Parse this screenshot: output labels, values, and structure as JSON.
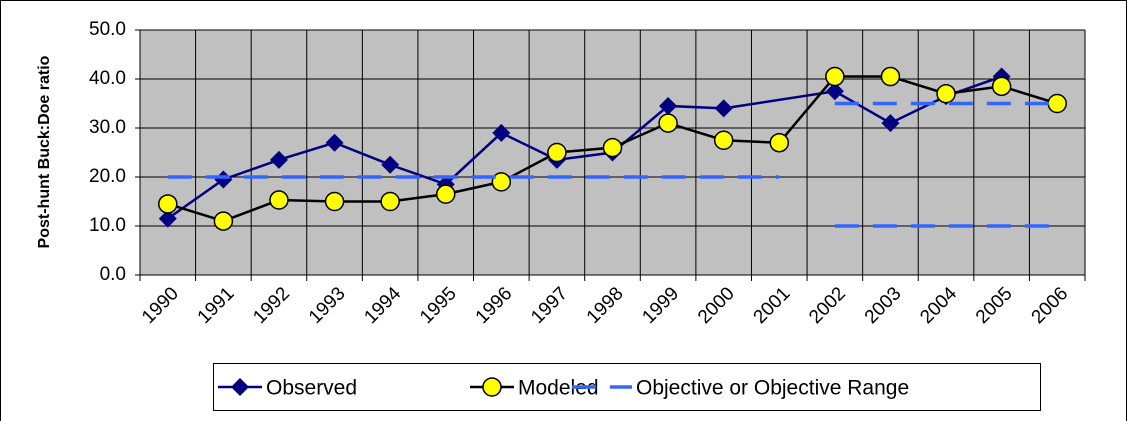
{
  "chart_data": {
    "type": "line",
    "y_label": "Post-hunt Buck:Doe ratio",
    "categories": [
      "1990",
      "1991",
      "1992",
      "1993",
      "1994",
      "1995",
      "1996",
      "1997",
      "1998",
      "1999",
      "2000",
      "2001",
      "2002",
      "2003",
      "2004",
      "2005",
      "2006"
    ],
    "ylim": [
      0,
      50
    ],
    "yticks": [
      {
        "value": 0,
        "label": "0.0"
      },
      {
        "value": 10,
        "label": "10.0"
      },
      {
        "value": 20,
        "label": "20.0"
      },
      {
        "value": 30,
        "label": "30.0"
      },
      {
        "value": 40,
        "label": "40.0"
      },
      {
        "value": 50,
        "label": "50.0"
      }
    ],
    "grid": true,
    "legend": "bottom",
    "series": [
      {
        "name": "Observed",
        "color": "#000080",
        "marker": "diamond",
        "x": [
          "1990",
          "1991",
          "1992",
          "1993",
          "1994",
          "1995",
          "1996",
          "1997",
          "1998",
          "1999",
          "2000",
          "2002",
          "2003",
          "2004",
          "2005"
        ],
        "values": [
          11.5,
          19.5,
          23.5,
          27,
          22.5,
          18.5,
          29,
          23.5,
          25,
          34.5,
          34,
          37.5,
          31,
          36.5,
          40.5
        ]
      },
      {
        "name": "Modeled",
        "color": "#000000",
        "marker": "circle",
        "marker_color": "#ffff00",
        "x": [
          "1990",
          "1991",
          "1992",
          "1993",
          "1994",
          "1995",
          "1996",
          "1997",
          "1998",
          "1999",
          "2000",
          "2001",
          "2002",
          "2003",
          "2004",
          "2005",
          "2006"
        ],
        "values": [
          14.5,
          11,
          15.3,
          15,
          15,
          16.5,
          19,
          25,
          26,
          31,
          27.5,
          27,
          40.5,
          40.5,
          37,
          38.5,
          35
        ]
      },
      {
        "name": "Objective or Objective Range",
        "color": "#3366ff",
        "dashed": true,
        "segments": [
          {
            "from": "1990",
            "to": "2001",
            "value": 20
          },
          {
            "from": "2002",
            "to": "2006",
            "value": 35
          },
          {
            "from": "2002",
            "to": "2006",
            "value": 10
          }
        ]
      }
    ]
  }
}
